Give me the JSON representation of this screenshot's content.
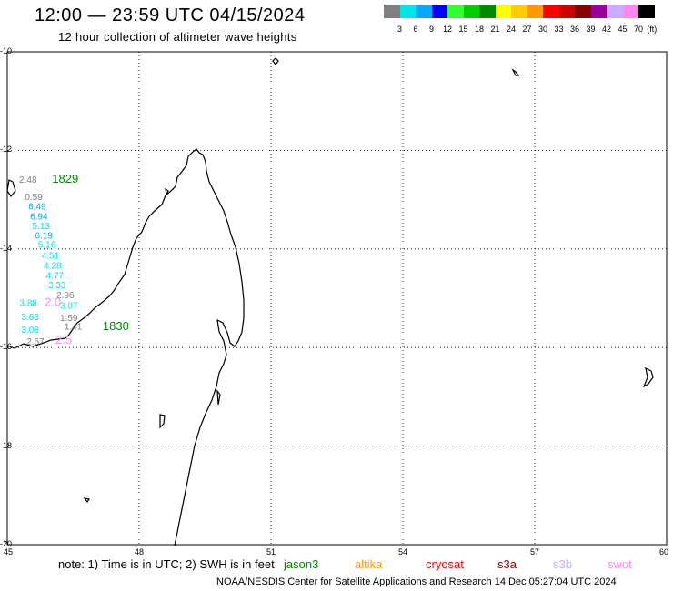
{
  "header": {
    "title": "12:00 — 23:59 UTC 04/15/2024",
    "subtitle": "12 hour collection of altimeter wave heights"
  },
  "colorbar": {
    "colors": [
      "#808080",
      "#00e5e5",
      "#00aaff",
      "#0000ff",
      "#33ff33",
      "#00cc00",
      "#008800",
      "#ffff00",
      "#ffcc00",
      "#ff9900",
      "#ff0000",
      "#cc0000",
      "#880000",
      "#990099",
      "#ccaaff",
      "#ff88ee",
      "#000000"
    ],
    "labels": [
      "3",
      "6",
      "9",
      "12",
      "15",
      "18",
      "21",
      "24",
      "27",
      "30",
      "33",
      "36",
      "39",
      "42",
      "45",
      "70",
      "(ft)"
    ]
  },
  "axes": {
    "lat_ticks": [
      "-10",
      "-12",
      "-14",
      "-16",
      "-18",
      "-20"
    ],
    "lon_ticks": [
      "45",
      "48",
      "51",
      "54",
      "57",
      "60"
    ]
  },
  "map": {
    "time_labels": [
      {
        "text": "1829",
        "lon": 46.02,
        "lat": -12.66,
        "color": "#008800"
      },
      {
        "text": "1830",
        "lon": 47.17,
        "lat": -15.65,
        "color": "#008800"
      }
    ],
    "measurements": [
      {
        "text": "2.48",
        "lon": 45.27,
        "lat": -12.66,
        "color": "#808080"
      },
      {
        "text": "0.59",
        "lon": 45.4,
        "lat": -13.01,
        "color": "#808080"
      },
      {
        "text": "6.49",
        "lon": 45.48,
        "lat": -13.2,
        "color": "#00aaff"
      },
      {
        "text": "6.94",
        "lon": 45.52,
        "lat": -13.4,
        "color": "#00aaff"
      },
      {
        "text": "5.13",
        "lon": 45.57,
        "lat": -13.6,
        "color": "#00e5e5"
      },
      {
        "text": "6.19",
        "lon": 45.63,
        "lat": -13.79,
        "color": "#00aaff"
      },
      {
        "text": "5.16",
        "lon": 45.7,
        "lat": -13.98,
        "color": "#00e5e5"
      },
      {
        "text": "4.51",
        "lon": 45.78,
        "lat": -14.2,
        "color": "#00e5e5"
      },
      {
        "text": "4.28",
        "lon": 45.83,
        "lat": -14.4,
        "color": "#00e5e5"
      },
      {
        "text": "4.77",
        "lon": 45.88,
        "lat": -14.6,
        "color": "#00e5e5"
      },
      {
        "text": "3.33",
        "lon": 45.93,
        "lat": -14.8,
        "color": "#00e5e5"
      },
      {
        "text": "2.96",
        "lon": 46.12,
        "lat": -15.0,
        "color": "#808080"
      },
      {
        "text": "3.07",
        "lon": 46.2,
        "lat": -15.21,
        "color": "#00e5e5"
      },
      {
        "text": "3.88",
        "lon": 45.28,
        "lat": -15.16,
        "color": "#00e5e5"
      },
      {
        "text": "3.63",
        "lon": 45.32,
        "lat": -15.44,
        "color": "#00e5e5"
      },
      {
        "text": "1.59",
        "lon": 46.2,
        "lat": -15.46,
        "color": "#808080"
      },
      {
        "text": "1.41",
        "lon": 46.3,
        "lat": -15.64,
        "color": "#808080"
      },
      {
        "text": "3.08",
        "lon": 45.32,
        "lat": -15.7,
        "color": "#00e5e5"
      },
      {
        "text": "2.57",
        "lon": 45.44,
        "lat": -15.94,
        "color": "#808080"
      },
      {
        "text": "2.0",
        "lon": 45.85,
        "lat": -15.16,
        "color": "#ff88ee"
      },
      {
        "text": "2.5",
        "lon": 46.1,
        "lat": -15.92,
        "color": "#ff88ee"
      }
    ]
  },
  "note": {
    "text": "note:  1) Time is in UTC; 2) SWH is in feet"
  },
  "satellites": [
    {
      "name": "jason3",
      "color": "#008800"
    },
    {
      "name": "altika",
      "color": "#ff9900"
    },
    {
      "name": "cryosat",
      "color": "#ff0000"
    },
    {
      "name": "s3a",
      "color": "#880000"
    },
    {
      "name": "s3b",
      "color": "#ccaaff"
    },
    {
      "name": "swot",
      "color": "#ff88ee"
    }
  ],
  "footer": {
    "text": "NOAA/NESDIS Center for Satellite Applications and Research    14 Dec 05:27:04 UTC 2024"
  }
}
